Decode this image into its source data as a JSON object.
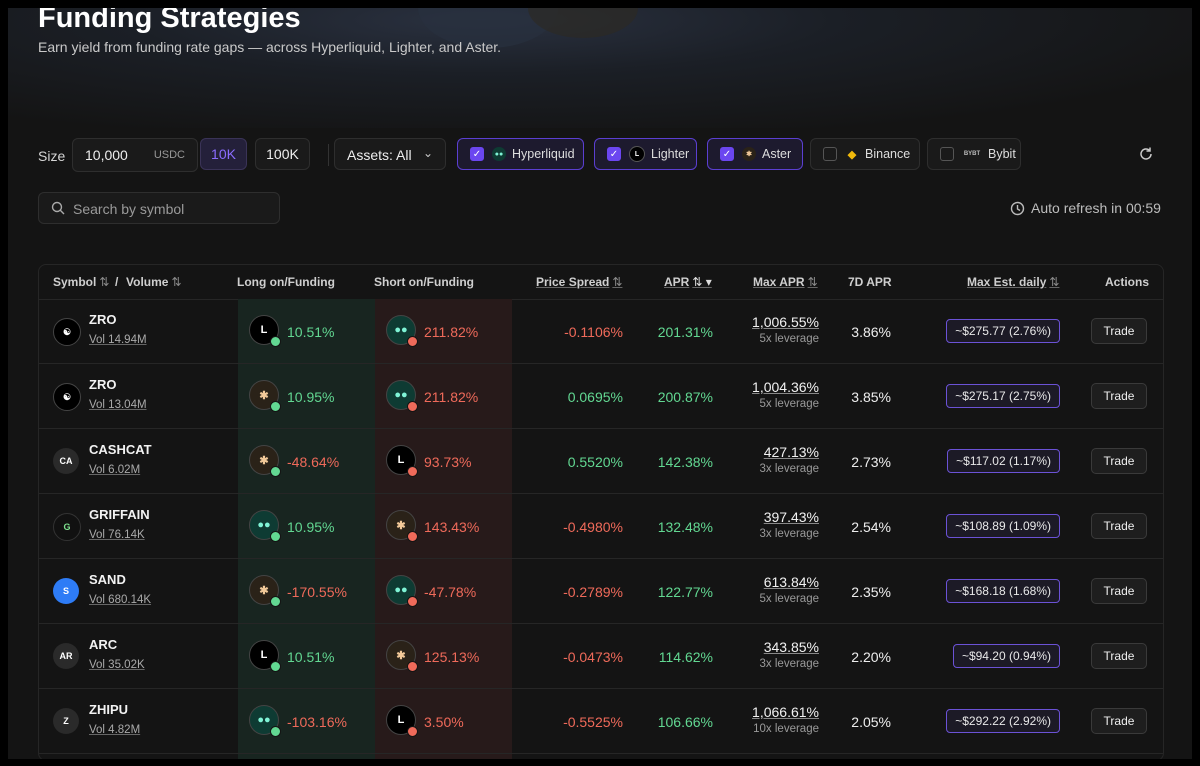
{
  "page": {
    "title": "Funding Strategies",
    "subtitle": "Earn yield from funding rate gaps — across Hyperliquid, Lighter, and Aster."
  },
  "toolbar": {
    "size_label": "Size",
    "size_value": "10,000",
    "size_unit": "USDC",
    "preset_10k": "10K",
    "preset_100k": "100K",
    "assets_label": "Assets: All",
    "exchanges": [
      {
        "name": "Hyperliquid",
        "checked": true
      },
      {
        "name": "Lighter",
        "checked": true
      },
      {
        "name": "Aster",
        "checked": true
      },
      {
        "name": "Binance",
        "checked": false
      },
      {
        "name": "Bybit",
        "checked": false
      }
    ]
  },
  "search": {
    "placeholder": "Search by symbol"
  },
  "auto_refresh": "Auto refresh in 00:59",
  "table": {
    "headers": {
      "symbol": "Symbol",
      "sep": "/",
      "volume": "Volume",
      "long": "Long on/Funding",
      "short": "Short on/Funding",
      "spread": "Price Spread",
      "apr": "APR",
      "max_apr": "Max APR",
      "apr7d": "7D APR",
      "max_est": "Max Est. daily",
      "actions": "Actions"
    },
    "trade_label": "Trade",
    "rows": [
      {
        "symbol": "ZRO",
        "volume": "Vol 14.94M",
        "long_rate": "10.51%",
        "short_rate": "211.82%",
        "spread": "-0.1106%",
        "apr": "201.31%",
        "max_apr": "1,006.55%",
        "leverage": "5x leverage",
        "apr7d": "3.86%",
        "est": "~$275.77 (2.76%)"
      },
      {
        "symbol": "ZRO",
        "volume": "Vol 13.04M",
        "long_rate": "10.95%",
        "short_rate": "211.82%",
        "spread": "0.0695%",
        "apr": "200.87%",
        "max_apr": "1,004.36%",
        "leverage": "5x leverage",
        "apr7d": "3.85%",
        "est": "~$275.17 (2.75%)"
      },
      {
        "symbol": "CASHCAT",
        "volume": "Vol 6.02M",
        "long_rate": "-48.64%",
        "short_rate": "93.73%",
        "spread": "0.5520%",
        "apr": "142.38%",
        "max_apr": "427.13%",
        "leverage": "3x leverage",
        "apr7d": "2.73%",
        "est": "~$117.02 (1.17%)"
      },
      {
        "symbol": "GRIFFAIN",
        "volume": "Vol 76.14K",
        "long_rate": "10.95%",
        "short_rate": "143.43%",
        "spread": "-0.4980%",
        "apr": "132.48%",
        "max_apr": "397.43%",
        "leverage": "3x leverage",
        "apr7d": "2.54%",
        "est": "~$108.89 (1.09%)"
      },
      {
        "symbol": "SAND",
        "volume": "Vol 680.14K",
        "long_rate": "-170.55%",
        "short_rate": "-47.78%",
        "spread": "-0.2789%",
        "apr": "122.77%",
        "max_apr": "613.84%",
        "leverage": "5x leverage",
        "apr7d": "2.35%",
        "est": "~$168.18 (1.68%)"
      },
      {
        "symbol": "ARC",
        "volume": "Vol 35.02K",
        "long_rate": "10.51%",
        "short_rate": "125.13%",
        "spread": "-0.0473%",
        "apr": "114.62%",
        "max_apr": "343.85%",
        "leverage": "3x leverage",
        "apr7d": "2.20%",
        "est": "~$94.20 (0.94%)"
      },
      {
        "symbol": "ZHIPU",
        "volume": "Vol 4.82M",
        "long_rate": "-103.16%",
        "short_rate": "3.50%",
        "spread": "-0.5525%",
        "apr": "106.66%",
        "max_apr": "1,066.61%",
        "leverage": "10x leverage",
        "apr7d": "2.05%",
        "est": "~$292.22 (2.92%)"
      }
    ]
  },
  "colors": {
    "accent": "#6b46f0",
    "positive": "#62d892",
    "negative": "#ef6a5a",
    "long_bg": "#182520",
    "short_bg": "#271a1a"
  }
}
